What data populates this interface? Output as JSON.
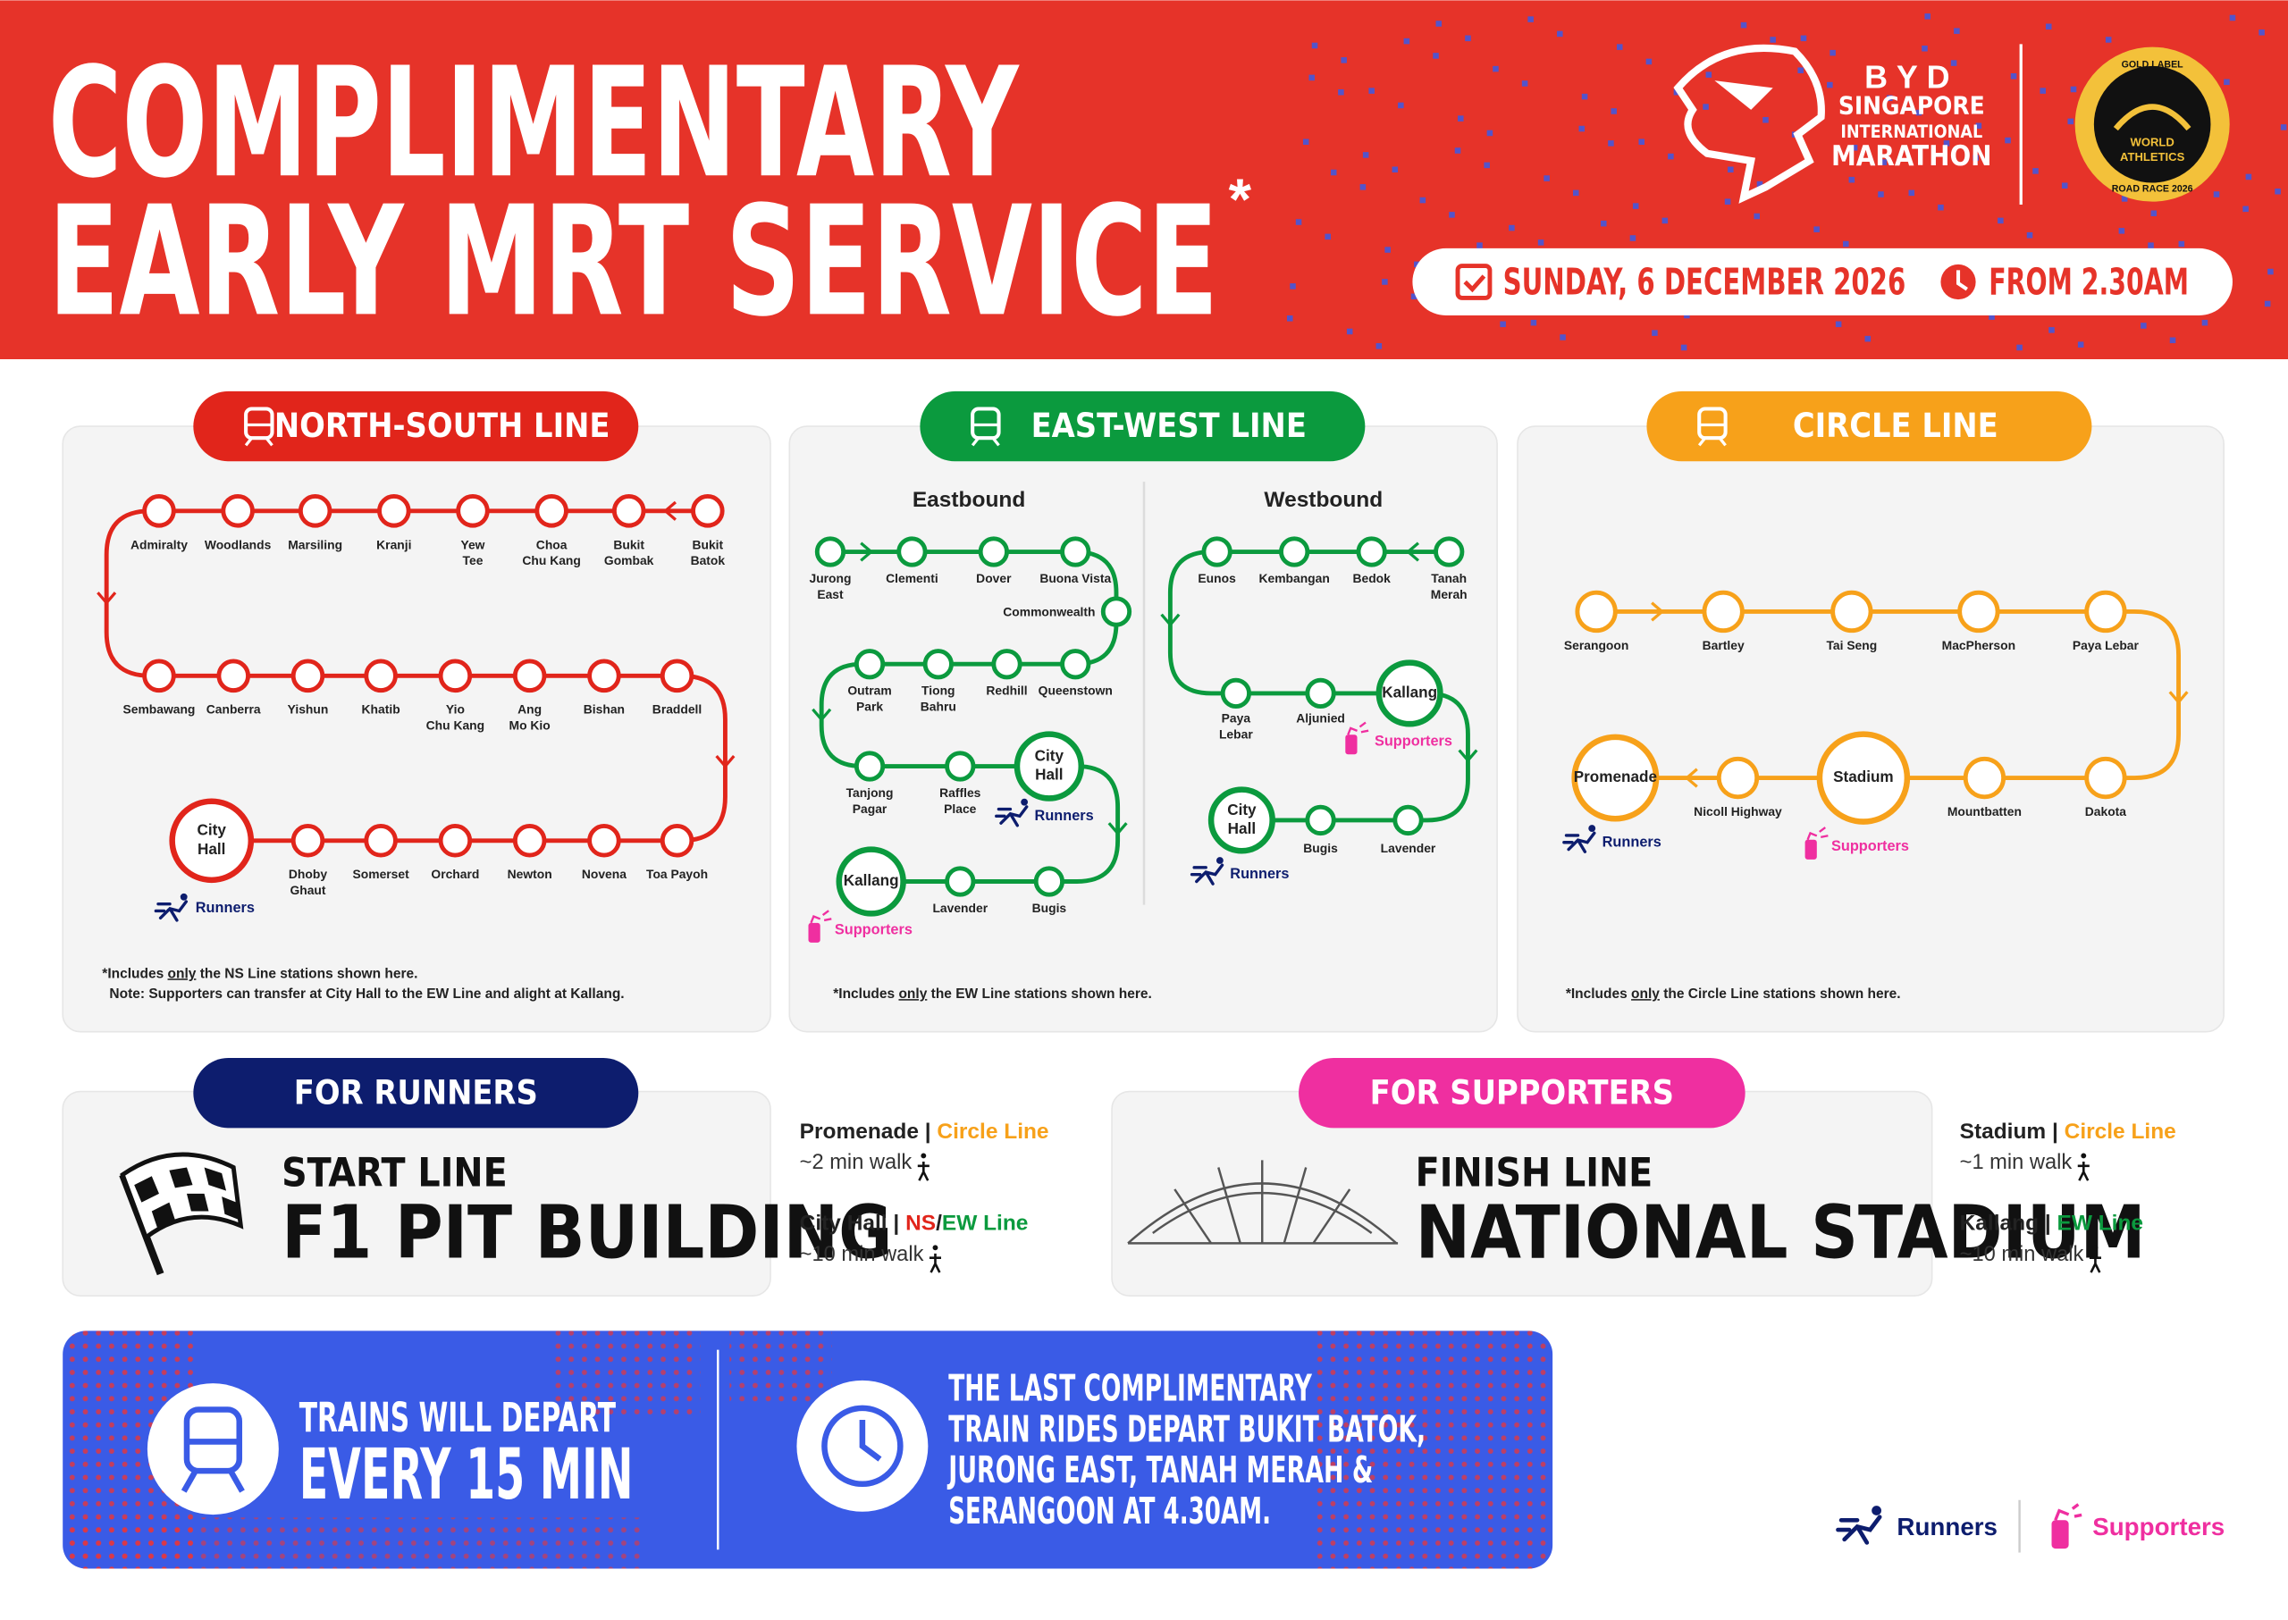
{
  "header": {
    "title": [
      "COMPLIMENTARY",
      "EARLY MRT SERVICE"
    ],
    "asterisk": "*",
    "date": "SUNDAY, 6 DECEMBER 2026",
    "time": "FROM 2.30AM",
    "event_logo": {
      "brand": "BYD",
      "lines": [
        "SINGAPORE",
        "INTERNATIONAL",
        "MARATHON"
      ]
    },
    "badge": {
      "top": "GOLD LABEL",
      "center": [
        "WORLD",
        "ATHLETICS"
      ],
      "bottom": "ROAD RACE 2026"
    }
  },
  "ns_line": {
    "title": "NORTH-SOUTH LINE",
    "color": "#e1251b",
    "stations": [
      [
        "Admiralty"
      ],
      [
        "Woodlands"
      ],
      [
        "Marsiling"
      ],
      [
        "Kranji"
      ],
      [
        "Yew",
        "Tee"
      ],
      [
        "Choa",
        "Chu Kang"
      ],
      [
        "Bukit",
        "Gombak"
      ],
      [
        "Bukit",
        "Batok"
      ],
      [
        "Sembawang"
      ],
      [
        "Canberra"
      ],
      [
        "Yishun"
      ],
      [
        "Khatib"
      ],
      [
        "Yio",
        "Chu Kang"
      ],
      [
        "Ang",
        "Mo Kio"
      ],
      [
        "Bishan"
      ],
      [
        "Braddell"
      ],
      [
        "City",
        "Hall"
      ],
      [
        "Dhoby",
        "Ghaut"
      ],
      [
        "Somerset"
      ],
      [
        "Orchard"
      ],
      [
        "Newton"
      ],
      [
        "Novena"
      ],
      [
        "Toa Payoh"
      ]
    ],
    "runners_label": "Runners",
    "notes": [
      {
        "pre": "*Includes",
        "em": "only",
        "post": "the NS Line stations shown here."
      },
      {
        "text": "Note: Supporters can transfer at City Hall to the EW Line and alight at Kallang."
      }
    ]
  },
  "ew_line": {
    "title": "EAST-WEST LINE",
    "color": "#0b9a3e",
    "eastbound": {
      "heading": "Eastbound",
      "stations": [
        [
          "Jurong",
          "East"
        ],
        [
          "Clementi"
        ],
        [
          "Dover"
        ],
        [
          "Buona Vista"
        ],
        [
          "Commonwealth"
        ],
        [
          "Outram",
          "Park"
        ],
        [
          "Tiong",
          "Bahru"
        ],
        [
          "Redhill"
        ],
        [
          "Queenstown"
        ],
        [
          "Tanjong",
          "Pagar"
        ],
        [
          "Raffles",
          "Place"
        ],
        [
          "City",
          "Hall"
        ],
        [
          "Kallang"
        ],
        [
          "Lavender"
        ],
        [
          "Bugis"
        ]
      ],
      "runners_label": "Runners",
      "supporters_label": "Supporters"
    },
    "westbound": {
      "heading": "Westbound",
      "stations": [
        [
          "Eunos"
        ],
        [
          "Kembangan"
        ],
        [
          "Bedok"
        ],
        [
          "Tanah",
          "Merah"
        ],
        [
          "Paya",
          "Lebar"
        ],
        [
          "Aljunied"
        ],
        [
          "Kallang"
        ],
        [
          "City",
          "Hall"
        ],
        [
          "Bugis"
        ],
        [
          "Lavender"
        ]
      ],
      "runners_label": "Runners",
      "supporters_label": "Supporters"
    },
    "note": {
      "pre": "*Includes",
      "em": "only",
      "post": "the EW Line stations shown here."
    }
  },
  "circle_line": {
    "title": "CIRCLE LINE",
    "color": "#f7a11a",
    "stations": [
      [
        "Serangoon"
      ],
      [
        "Bartley"
      ],
      [
        "Tai Seng"
      ],
      [
        "MacPherson"
      ],
      [
        "Paya Lebar"
      ],
      [
        "Promenade"
      ],
      [
        "Nicoll Highway"
      ],
      [
        "Stadium"
      ],
      [
        "Mountbatten"
      ],
      [
        "Dakota"
      ]
    ],
    "runners_label": "Runners",
    "supporters_label": "Supporters",
    "note": {
      "pre": "*Includes",
      "em": "only",
      "post": "the Circle Line stations shown here."
    }
  },
  "runners": {
    "title": "FOR RUNNERS",
    "start_label": "START LINE",
    "venue": "F1 PIT BUILDING",
    "routes": [
      {
        "station": "Promenade",
        "separator": "|",
        "lines": [
          {
            "text": "Circle Line",
            "color": "#f7a11a"
          }
        ],
        "walk": "~2 min walk"
      },
      {
        "station": "City Hall",
        "separator": "|",
        "lines": [
          {
            "text": "NS",
            "color": "#e1251b"
          },
          {
            "text": "/",
            "color": "#222222"
          },
          {
            "text": "EW Line",
            "color": "#0b9a3e"
          }
        ],
        "walk": "~10 min walk"
      }
    ]
  },
  "supporters": {
    "title": "FOR SUPPORTERS",
    "finish_label": "FINISH LINE",
    "venue": "NATIONAL STADIUM",
    "routes": [
      {
        "station": "Stadium",
        "separator": "|",
        "lines": [
          {
            "text": "Circle Line",
            "color": "#f7a11a"
          }
        ],
        "walk": "~1 min walk"
      },
      {
        "station": "Kallang",
        "separator": "|",
        "lines": [
          {
            "text": "EW Line",
            "color": "#0b9a3e"
          }
        ],
        "walk": "~10 min walk"
      }
    ]
  },
  "banner": {
    "frequency_lead": "TRAINS WILL DEPART",
    "frequency": "EVERY 15 MIN",
    "last_train": [
      "THE LAST COMPLIMENTARY",
      "TRAIN RIDES DEPART BUKIT BATOK,",
      "JURONG EAST, TANAH MERAH &",
      "SERANGOON AT 4.30AM."
    ]
  },
  "legend": {
    "runners": "Runners",
    "supporters": "Supporters"
  }
}
